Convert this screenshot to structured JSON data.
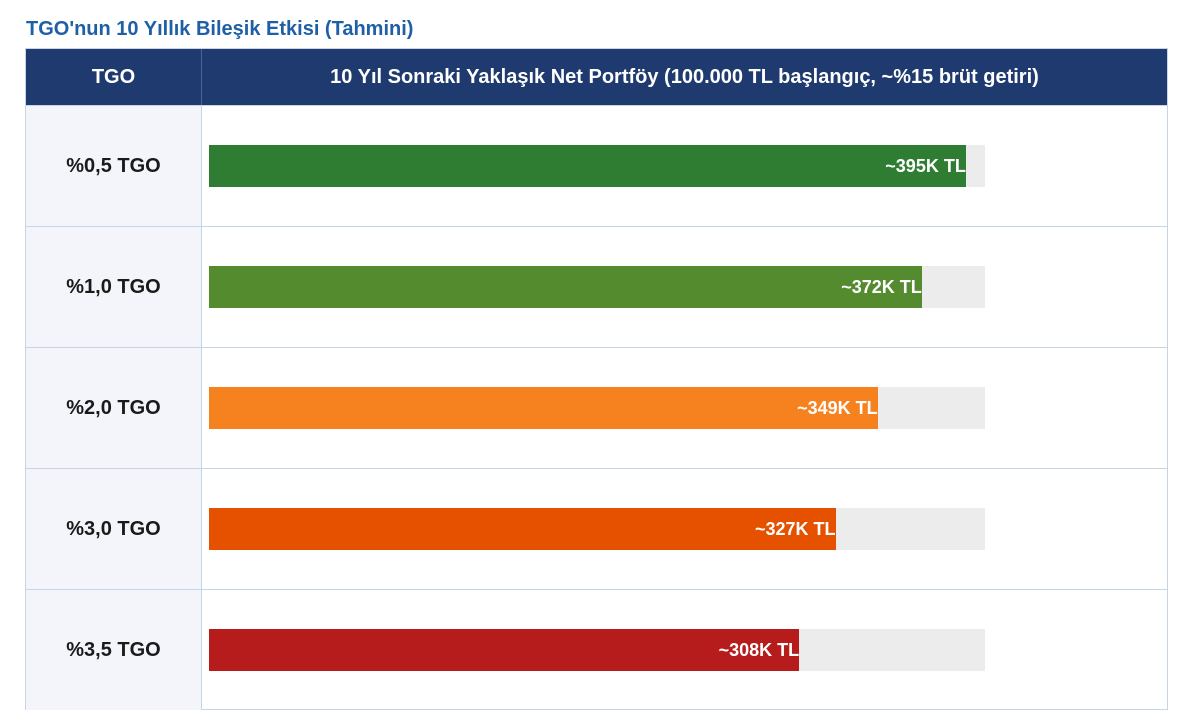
{
  "chart_data": {
    "type": "bar",
    "orientation": "horizontal",
    "title": "TGO'nun 10 Yıllık Bileşik Etkisi (Tahmini)",
    "header": {
      "col1": "TGO",
      "col2": "10 Yıl Sonraki Yaklaşık Net Portföy (100.000 TL başlangıç, ~%15 brüt getiri)"
    },
    "max": 405,
    "rows": [
      {
        "category": "%0,5 TGO",
        "value": 395,
        "label": "~395K TL",
        "color": "#2e7d32"
      },
      {
        "category": "%1,0 TGO",
        "value": 372,
        "label": "~372K TL",
        "color": "#558b2f"
      },
      {
        "category": "%2,0 TGO",
        "value": 349,
        "label": "~349K TL",
        "color": "#f5821f"
      },
      {
        "category": "%3,0 TGO",
        "value": 327,
        "label": "~327K TL",
        "color": "#e65100"
      },
      {
        "category": "%3,5 TGO",
        "value": 308,
        "label": "~308K TL",
        "color": "#b71c1c"
      }
    ]
  }
}
